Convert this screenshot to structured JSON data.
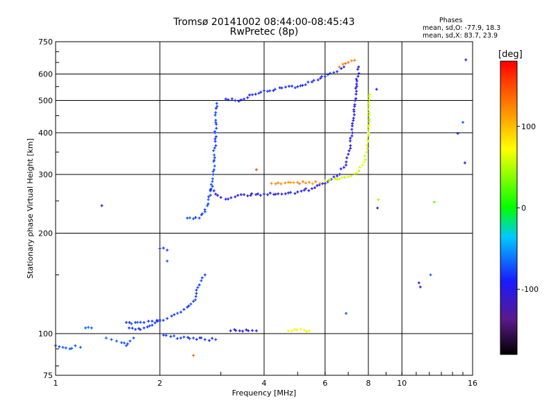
{
  "chart_data": {
    "type": "scatter",
    "title": "Tromsø 20141002 08:44:00-08:45:43",
    "subtitle": "RwPretec (8p)",
    "xlabel": "Frequency [MHz]",
    "ylabel": "Stationary phase Virtual Height [km]",
    "x_scale": "log",
    "y_scale": "log",
    "xlim": [
      1,
      16
    ],
    "ylim": [
      75,
      750
    ],
    "x_ticks": [
      1,
      2,
      4,
      6,
      8,
      10,
      16
    ],
    "x_tick_labels": [
      "1",
      "2",
      "4",
      "6",
      "8",
      "10",
      "16"
    ],
    "y_ticks": [
      75,
      100,
      200,
      300,
      400,
      500,
      600,
      750
    ],
    "y_tick_labels": [
      "75",
      "100",
      "200",
      "300",
      "400",
      "500",
      "600",
      "750"
    ],
    "grid": true,
    "colorbar": {
      "label": "[deg]",
      "min": -180,
      "max": 180,
      "ticks": [
        100,
        0,
        -100
      ],
      "tick_labels": [
        "100",
        "0",
        "-100"
      ],
      "colormap": "rainbow"
    },
    "stats": {
      "heading": "Phases",
      "o_mode": "mean, sd,O: -77.9, 18.3",
      "x_mode": "mean, sd,X:  83.7, 23.9"
    },
    "traces": [
      {
        "points": [
          [
            1.0,
            92
          ],
          [
            1.05,
            91
          ],
          [
            1.1,
            90
          ],
          [
            1.14,
            92
          ],
          [
            1.18,
            91
          ]
        ],
        "phase": -70
      },
      {
        "points": [
          [
            1.22,
            104
          ],
          [
            1.27,
            104
          ]
        ],
        "phase": -70
      },
      {
        "points": [
          [
            1.4,
            97
          ],
          [
            1.45,
            96
          ],
          [
            1.5,
            95
          ],
          [
            1.55,
            94
          ],
          [
            1.6,
            92
          ],
          [
            1.64,
            95
          ],
          [
            1.68,
            97
          ]
        ],
        "phase": -70
      },
      {
        "points": [
          [
            1.6,
            108
          ],
          [
            1.7,
            108
          ],
          [
            1.8,
            108
          ],
          [
            1.9,
            109
          ],
          [
            2.0,
            110
          ]
        ],
        "phase": -80
      },
      {
        "points": [
          [
            1.63,
            104
          ],
          [
            1.7,
            103
          ],
          [
            1.8,
            104
          ],
          [
            1.9,
            106
          ],
          [
            2.0,
            109
          ],
          [
            2.1,
            111
          ],
          [
            2.2,
            114
          ],
          [
            2.3,
            116
          ],
          [
            2.4,
            120
          ],
          [
            2.5,
            125
          ],
          [
            2.55,
            132
          ],
          [
            2.6,
            140
          ],
          [
            2.65,
            147
          ],
          [
            2.7,
            150
          ]
        ],
        "phase": -80
      },
      {
        "points": [
          [
            2.05,
            99
          ],
          [
            2.15,
            98
          ],
          [
            2.3,
            97
          ],
          [
            2.5,
            97
          ],
          [
            2.7,
            96
          ],
          [
            2.9,
            96
          ]
        ],
        "phase": -80
      },
      {
        "points": [
          [
            2.0,
            180
          ],
          [
            2.1,
            178
          ]
        ],
        "phase": -80
      },
      {
        "points": [
          [
            2.4,
            222
          ],
          [
            2.5,
            221
          ],
          [
            2.6,
            222
          ],
          [
            2.7,
            232
          ],
          [
            2.8,
            260
          ],
          [
            2.85,
            300
          ],
          [
            2.88,
            360
          ],
          [
            2.9,
            430
          ],
          [
            2.92,
            490
          ]
        ],
        "phase": -75
      },
      {
        "points": [
          [
            2.8,
            270
          ],
          [
            2.9,
            262
          ],
          [
            3.0,
            256
          ],
          [
            3.1,
            253
          ],
          [
            3.3,
            257
          ],
          [
            3.5,
            261
          ],
          [
            4.0,
            262
          ],
          [
            4.5,
            262
          ],
          [
            5.0,
            266
          ],
          [
            5.5,
            272
          ],
          [
            6.0,
            282
          ],
          [
            6.5,
            297
          ],
          [
            6.8,
            315
          ],
          [
            7.0,
            345
          ],
          [
            7.2,
            400
          ],
          [
            7.3,
            480
          ],
          [
            7.4,
            560
          ],
          [
            7.5,
            630
          ]
        ],
        "phase": -95
      },
      {
        "points": [
          [
            4.2,
            282
          ],
          [
            4.6,
            283
          ],
          [
            5.0,
            284
          ],
          [
            5.4,
            284
          ],
          [
            5.8,
            282
          ]
        ],
        "phase": 120
      },
      {
        "points": [
          [
            6.0,
            287
          ],
          [
            6.5,
            290
          ],
          [
            7.0,
            295
          ],
          [
            7.4,
            303
          ],
          [
            7.7,
            320
          ],
          [
            7.9,
            350
          ],
          [
            8.0,
            400
          ],
          [
            8.05,
            460
          ],
          [
            8.07,
            520
          ]
        ],
        "phase": 60
      },
      {
        "points": [
          [
            3.1,
            505
          ],
          [
            3.3,
            500
          ],
          [
            3.5,
            505
          ],
          [
            3.7,
            520
          ],
          [
            4.0,
            535
          ],
          [
            4.5,
            545
          ],
          [
            5.0,
            550
          ],
          [
            5.5,
            568
          ],
          [
            6.0,
            590
          ],
          [
            6.5,
            610
          ],
          [
            6.8,
            630
          ]
        ],
        "phase": -85
      },
      {
        "points": [
          [
            3.2,
            102
          ],
          [
            3.4,
            102
          ],
          [
            3.6,
            102
          ],
          [
            3.8,
            102
          ]
        ],
        "phase": -95
      },
      {
        "points": [
          [
            4.7,
            102
          ],
          [
            4.9,
            103
          ],
          [
            5.1,
            103
          ],
          [
            5.4,
            102
          ]
        ],
        "phase": 70
      },
      {
        "points": [
          [
            6.6,
            630
          ],
          [
            7.0,
            650
          ],
          [
            7.3,
            660
          ]
        ],
        "phase": 130
      }
    ],
    "isolated_points": [
      {
        "x": 1.36,
        "y": 242,
        "phase": -110
      },
      {
        "x": 2.1,
        "y": 165,
        "phase": -70
      },
      {
        "x": 2.5,
        "y": 86,
        "phase": 140
      },
      {
        "x": 3.8,
        "y": 310,
        "phase": 150
      },
      {
        "x": 6.9,
        "y": 115,
        "phase": -70
      },
      {
        "x": 8.45,
        "y": 540,
        "phase": -90
      },
      {
        "x": 8.5,
        "y": 238,
        "phase": -110
      },
      {
        "x": 8.55,
        "y": 252,
        "phase": 40
      },
      {
        "x": 11.2,
        "y": 142,
        "phase": -100
      },
      {
        "x": 11.3,
        "y": 138,
        "phase": -110
      },
      {
        "x": 12.4,
        "y": 248,
        "phase": 30
      },
      {
        "x": 12.1,
        "y": 150,
        "phase": -70
      },
      {
        "x": 14.5,
        "y": 398,
        "phase": -80
      },
      {
        "x": 15.0,
        "y": 430,
        "phase": -70
      },
      {
        "x": 15.2,
        "y": 325,
        "phase": -90
      },
      {
        "x": 15.3,
        "y": 662,
        "phase": -110
      }
    ]
  }
}
